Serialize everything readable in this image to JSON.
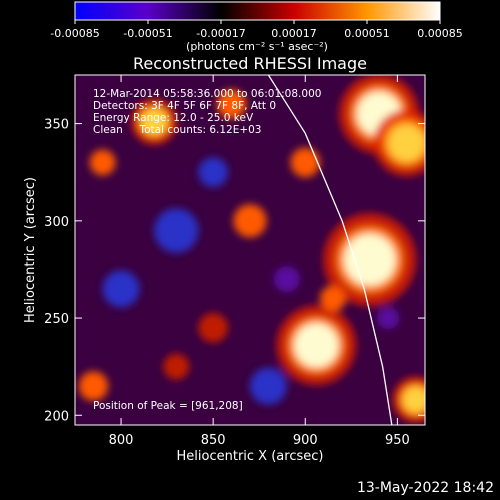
{
  "colorbar": {
    "tick_labels": [
      "-0.00085",
      "-0.00051",
      "-0.00017",
      "0.00017",
      "0.00051",
      "0.00085"
    ],
    "tick_values": [
      -0.00085,
      -0.00051,
      -0.00017,
      0.00017,
      0.00051,
      0.00085
    ],
    "range": [
      -0.00085,
      0.00085
    ],
    "units_label": "(photons cm⁻² s⁻¹ asec⁻²)",
    "colors": [
      "#0000ff",
      "#5a00c8",
      "#000000",
      "#c80000",
      "#ff9600",
      "#ffffff"
    ]
  },
  "chart_data": {
    "type": "heatmap",
    "title": "Reconstructed RHESSI Image",
    "xlabel": "Heliocentric X (arcsec)",
    "ylabel": "Heliocentric Y (arcsec)",
    "xlim": [
      775,
      965
    ],
    "ylim": [
      195,
      375
    ],
    "x_ticks": [
      800,
      850,
      900,
      950
    ],
    "y_ticks": [
      200,
      250,
      300,
      350
    ],
    "x_tick_labels": [
      "800",
      "850",
      "900",
      "950"
    ],
    "y_tick_labels": [
      "200",
      "250",
      "300",
      "350"
    ],
    "annotations": [
      "12-Mar-2014 05:58:36.000 to 06:01:08.000",
      "Detectors: 3F 4F 5F 6F 7F 8F, Att 0",
      "Energy Range: 12.0 - 25.0 keV",
      "Clean     Total counts: 6.12E+03"
    ],
    "peak_label": "Position of Peak = [961,208]",
    "peak_position": [
      961,
      208
    ],
    "limb_curve": [
      [
        880,
        375
      ],
      [
        900,
        345
      ],
      [
        920,
        300
      ],
      [
        932,
        265
      ],
      [
        942,
        225
      ],
      [
        947,
        195
      ]
    ],
    "sources": [
      {
        "x": 906,
        "y": 236,
        "r": 12,
        "level": 1.0
      },
      {
        "x": 935,
        "y": 280,
        "r": 14,
        "level": 0.9
      },
      {
        "x": 940,
        "y": 355,
        "r": 12,
        "level": 0.95
      },
      {
        "x": 955,
        "y": 340,
        "r": 10,
        "level": 0.8
      },
      {
        "x": 818,
        "y": 351,
        "r": 7,
        "level": 0.8
      },
      {
        "x": 960,
        "y": 208,
        "r": 7,
        "level": 0.85
      },
      {
        "x": 900,
        "y": 330,
        "r": 8,
        "level": 0.45
      },
      {
        "x": 870,
        "y": 300,
        "r": 9,
        "level": 0.45
      },
      {
        "x": 790,
        "y": 330,
        "r": 7,
        "level": 0.45
      },
      {
        "x": 850,
        "y": 245,
        "r": 8,
        "level": 0.3
      },
      {
        "x": 785,
        "y": 215,
        "r": 8,
        "level": 0.4
      },
      {
        "x": 915,
        "y": 260,
        "r": 7,
        "level": 0.45
      },
      {
        "x": 860,
        "y": 360,
        "r": 8,
        "level": 0.35
      },
      {
        "x": 830,
        "y": 225,
        "r": 7,
        "level": 0.3
      },
      {
        "x": 830,
        "y": 295,
        "r": 12,
        "level": -0.55
      },
      {
        "x": 880,
        "y": 215,
        "r": 10,
        "level": -0.5
      },
      {
        "x": 800,
        "y": 265,
        "r": 10,
        "level": -0.5
      },
      {
        "x": 850,
        "y": 325,
        "r": 8,
        "level": -0.6
      },
      {
        "x": 945,
        "y": 250,
        "r": 6,
        "level": -0.4
      },
      {
        "x": 890,
        "y": 270,
        "r": 7,
        "level": -0.35
      }
    ]
  },
  "footer": {
    "date": "13-May-2022 18:42"
  }
}
